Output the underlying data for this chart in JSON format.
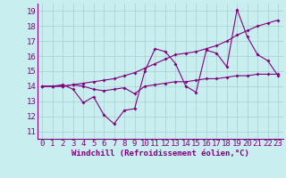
{
  "x_values": [
    0,
    1,
    2,
    3,
    4,
    5,
    6,
    7,
    8,
    9,
    10,
    11,
    12,
    13,
    14,
    15,
    16,
    17,
    18,
    19,
    20,
    21,
    22,
    23
  ],
  "line1": [
    14.0,
    14.0,
    14.1,
    13.8,
    12.9,
    13.3,
    12.1,
    11.5,
    12.4,
    12.5,
    15.0,
    16.5,
    16.3,
    15.5,
    14.0,
    13.6,
    16.4,
    16.2,
    15.3,
    19.1,
    17.3,
    16.1,
    15.7,
    14.7
  ],
  "line2": [
    14.0,
    14.0,
    14.0,
    14.1,
    14.0,
    13.8,
    13.7,
    13.8,
    13.9,
    13.5,
    14.0,
    14.1,
    14.2,
    14.3,
    14.3,
    14.4,
    14.5,
    14.5,
    14.6,
    14.7,
    14.7,
    14.8,
    14.8,
    14.8
  ],
  "line3": [
    14.0,
    14.0,
    14.0,
    14.1,
    14.2,
    14.3,
    14.4,
    14.5,
    14.7,
    14.9,
    15.2,
    15.5,
    15.8,
    16.1,
    16.2,
    16.3,
    16.5,
    16.7,
    17.0,
    17.4,
    17.7,
    18.0,
    18.2,
    18.4
  ],
  "bg_color": "#c8eef0",
  "line_color": "#800080",
  "grid_color": "#a8cdd0",
  "xlabel": "Windchill (Refroidissement éolien,°C)",
  "xlim": [
    -0.5,
    23.5
  ],
  "ylim": [
    10.5,
    19.5
  ],
  "yticks": [
    11,
    12,
    13,
    14,
    15,
    16,
    17,
    18,
    19
  ],
  "xticks": [
    0,
    1,
    2,
    3,
    4,
    5,
    6,
    7,
    8,
    9,
    10,
    11,
    12,
    13,
    14,
    15,
    16,
    17,
    18,
    19,
    20,
    21,
    22,
    23
  ],
  "font_size": 6.5,
  "marker": "D",
  "marker_size": 2.0,
  "line_width": 0.8
}
